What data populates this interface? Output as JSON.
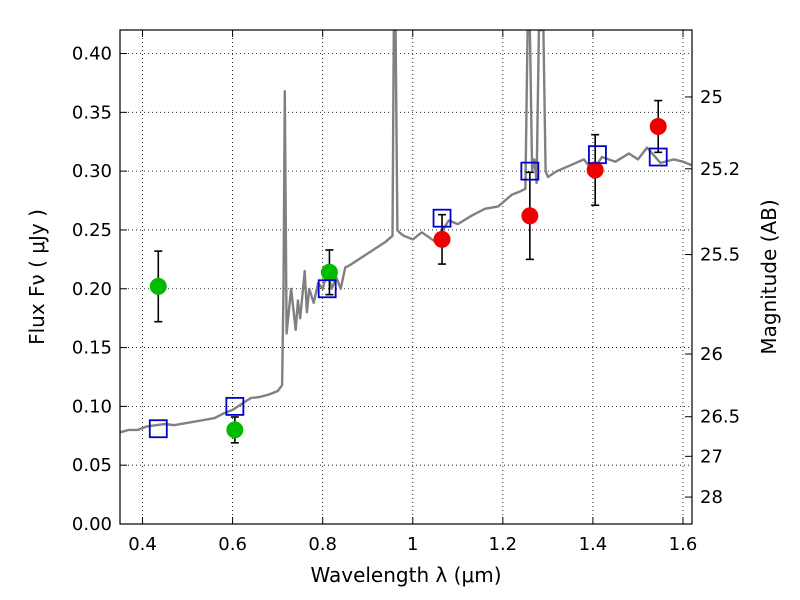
{
  "chart_data": {
    "type": "scatter",
    "xlabel": "Wavelength  λ (μm)",
    "ylabel": "Flux  Fν  ( μJy )",
    "y2label": "Magnitude (AB)",
    "xlim": [
      0.35,
      1.62
    ],
    "ylim": [
      0.0,
      0.42
    ],
    "x_ticks": [
      0.4,
      0.6,
      0.8,
      1.0,
      1.2,
      1.4,
      1.6
    ],
    "x_tick_labels": [
      "0.4",
      "0.6",
      "0.8",
      "1",
      "1.2",
      "1.4",
      "1.6"
    ],
    "y_ticks": [
      0.0,
      0.05,
      0.1,
      0.15,
      0.2,
      0.25,
      0.3,
      0.35,
      0.4
    ],
    "y_tick_labels": [
      "0.00",
      "0.05",
      "0.10",
      "0.15",
      "0.20",
      "0.25",
      "0.30",
      "0.35",
      "0.40"
    ],
    "y2_ticks": [
      25,
      25.2,
      25.5,
      26,
      26.5,
      27,
      28
    ],
    "y2_tick_labels": [
      "25",
      "25.2",
      "25.5",
      "26",
      "26.5",
      "27",
      "28"
    ],
    "grid": true,
    "series": [
      {
        "type": "line",
        "color": "#808080",
        "x": [
          0.35,
          0.37,
          0.39,
          0.41,
          0.43,
          0.45,
          0.47,
          0.5,
          0.53,
          0.56,
          0.58,
          0.6,
          0.62,
          0.64,
          0.66,
          0.68,
          0.7,
          0.71,
          0.713,
          0.716,
          0.72,
          0.73,
          0.74,
          0.745,
          0.75,
          0.76,
          0.765,
          0.77,
          0.78,
          0.79,
          0.8,
          0.81,
          0.82,
          0.83,
          0.84,
          0.85,
          0.86,
          0.88,
          0.9,
          0.92,
          0.94,
          0.955,
          0.958,
          0.962,
          0.966,
          0.97,
          0.98,
          1.0,
          1.02,
          1.05,
          1.08,
          1.1,
          1.13,
          1.16,
          1.19,
          1.22,
          1.24,
          1.25,
          1.255,
          1.26,
          1.265,
          1.27,
          1.275,
          1.28,
          1.285,
          1.29,
          1.295,
          1.3,
          1.32,
          1.35,
          1.38,
          1.4,
          1.42,
          1.45,
          1.48,
          1.5,
          1.52,
          1.55,
          1.58,
          1.6,
          1.62
        ],
        "y": [
          0.078,
          0.08,
          0.08,
          0.083,
          0.084,
          0.085,
          0.084,
          0.086,
          0.088,
          0.09,
          0.094,
          0.097,
          0.102,
          0.107,
          0.108,
          0.11,
          0.113,
          0.118,
          0.2,
          0.368,
          0.162,
          0.2,
          0.165,
          0.19,
          0.175,
          0.215,
          0.18,
          0.2,
          0.188,
          0.205,
          0.2,
          0.215,
          0.2,
          0.21,
          0.2,
          0.218,
          0.22,
          0.225,
          0.23,
          0.235,
          0.24,
          0.245,
          0.42,
          0.42,
          0.25,
          0.248,
          0.245,
          0.242,
          0.248,
          0.24,
          0.258,
          0.255,
          0.262,
          0.268,
          0.27,
          0.28,
          0.283,
          0.285,
          0.42,
          0.42,
          0.3,
          0.31,
          0.29,
          0.42,
          0.42,
          0.42,
          0.3,
          0.295,
          0.3,
          0.305,
          0.31,
          0.3,
          0.312,
          0.308,
          0.315,
          0.31,
          0.32,
          0.307,
          0.31,
          0.308,
          0.305
        ]
      },
      {
        "type": "scatter",
        "marker": "circle",
        "color": "#00bb00",
        "x": [
          0.435,
          0.605,
          0.815
        ],
        "y": [
          0.202,
          0.08,
          0.214
        ],
        "yerr": [
          0.03,
          0.011,
          0.019
        ]
      },
      {
        "type": "scatter",
        "marker": "circle",
        "color": "#ee0000",
        "x": [
          1.065,
          1.26,
          1.405,
          1.545
        ],
        "y": [
          0.242,
          0.262,
          0.301,
          0.338
        ],
        "yerr": [
          0.021,
          0.037,
          0.03,
          0.022
        ]
      },
      {
        "type": "scatter",
        "marker": "square",
        "color": "#0000cc",
        "x": [
          0.435,
          0.605,
          0.81,
          1.065,
          1.26,
          1.41,
          1.545
        ],
        "y": [
          0.081,
          0.1,
          0.2,
          0.26,
          0.3,
          0.314,
          0.312
        ]
      }
    ]
  }
}
